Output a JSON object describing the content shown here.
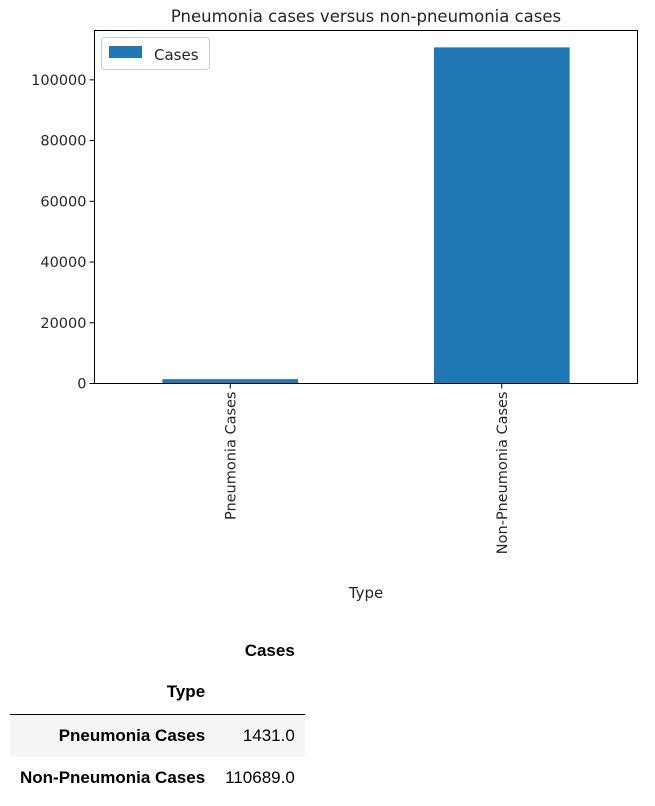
{
  "chart_data": {
    "type": "bar",
    "title": "Pneumonia cases versus non-pneumonia cases",
    "xlabel": "Type",
    "ylabel": "",
    "categories": [
      "Pneumonia Cases",
      "Non-Pneumonia Cases"
    ],
    "series": [
      {
        "name": "Cases",
        "values": [
          1431.0,
          110689.0
        ],
        "color": "#1f77b4"
      }
    ],
    "ylim": [
      0,
      116250
    ],
    "yticks": [
      0,
      20000,
      40000,
      60000,
      80000,
      100000
    ],
    "ytick_labels": [
      "0",
      "20000",
      "40000",
      "60000",
      "80000",
      "100000"
    ],
    "legend_placement": "top-left",
    "grid": false
  },
  "table": {
    "column_header": "Cases",
    "index_name": "Type",
    "rows": [
      {
        "label": "Pneumonia Cases",
        "value": "1431.0"
      },
      {
        "label": "Non-Pneumonia Cases",
        "value": "110689.0"
      }
    ]
  }
}
